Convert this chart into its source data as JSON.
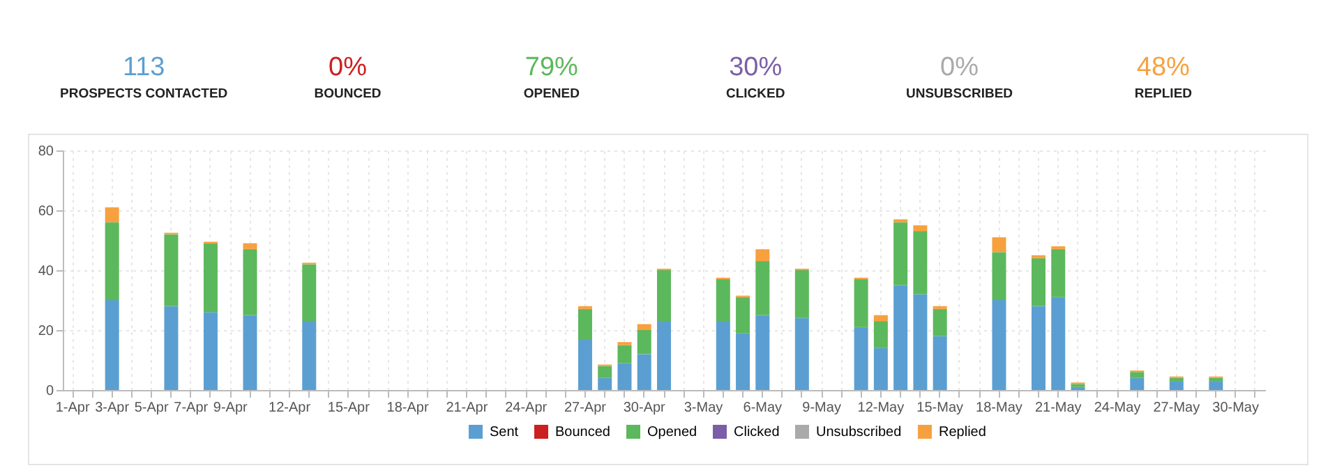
{
  "chart_data": [
    {
      "type": "other",
      "categories": [
        "PROSPECTS CONTACTED",
        "BOUNCED",
        "OPENED",
        "CLICKED",
        "UNSUBSCRIBED",
        "REPLIED"
      ],
      "value_labels": [
        "113",
        "0%",
        "79%",
        "30%",
        "0%",
        "48%"
      ],
      "colors": [
        "#5b9fd2",
        "#cc1f1f",
        "#5cb85c",
        "#7b5ea7",
        "#aaaaaa",
        "#f7a040"
      ]
    },
    {
      "type": "bar",
      "stacked": true,
      "categories": [
        "1-Apr",
        null,
        "3-Apr",
        null,
        "5-Apr",
        null,
        "7-Apr",
        null,
        "9-Apr",
        null,
        null,
        "12-Apr",
        null,
        null,
        "15-Apr",
        null,
        null,
        "18-Apr",
        null,
        null,
        "21-Apr",
        null,
        null,
        "24-Apr",
        null,
        null,
        "27-Apr",
        null,
        null,
        "30-Apr",
        null,
        null,
        "3-May",
        null,
        null,
        "6-May",
        null,
        null,
        "9-May",
        null,
        null,
        "12-May",
        null,
        null,
        "15-May",
        null,
        null,
        "18-May",
        null,
        null,
        "21-May",
        null,
        null,
        "24-May",
        null,
        null,
        "27-May",
        null,
        null,
        "30-May",
        null
      ],
      "series": [
        {
          "name": "Sent",
          "color": "#5b9fd2",
          "values": [
            0,
            0,
            30,
            0,
            0,
            28,
            0,
            26,
            0,
            25,
            0,
            0,
            23,
            0,
            0,
            0,
            0,
            0,
            0,
            0,
            0,
            0,
            0,
            0,
            0,
            0,
            17,
            4,
            9,
            12,
            23,
            0,
            0,
            23,
            19,
            25,
            0,
            24,
            0,
            0,
            21,
            14,
            35,
            32,
            18,
            0,
            0,
            30,
            0,
            28,
            31,
            1,
            0,
            0,
            4,
            0,
            3,
            0,
            3,
            0,
            0
          ]
        },
        {
          "name": "Bounced",
          "color": "#cc1f1f",
          "values": [
            0,
            0,
            0,
            0,
            0,
            0,
            0,
            0,
            0,
            0,
            0,
            0,
            0,
            0,
            0,
            0,
            0,
            0,
            0,
            0,
            0,
            0,
            0,
            0,
            0,
            0,
            0,
            0,
            0,
            0,
            0,
            0,
            0,
            0,
            0,
            0,
            0,
            0,
            0,
            0,
            0,
            0,
            0,
            0,
            0,
            0,
            0,
            0,
            0,
            0,
            0,
            0,
            0,
            0,
            0,
            0,
            0,
            0,
            0,
            0,
            0
          ]
        },
        {
          "name": "Opened",
          "color": "#5cb85c",
          "values": [
            0,
            0,
            26,
            0,
            0,
            24,
            0,
            23,
            0,
            22,
            0,
            0,
            19,
            0,
            0,
            0,
            0,
            0,
            0,
            0,
            0,
            0,
            0,
            0,
            0,
            0,
            10,
            4,
            6,
            8,
            17,
            0,
            0,
            14,
            12,
            18,
            0,
            16,
            0,
            0,
            16,
            9,
            21,
            21,
            9,
            0,
            0,
            16,
            0,
            16,
            16,
            1,
            0,
            0,
            2,
            0,
            1,
            0,
            1,
            0,
            0
          ]
        },
        {
          "name": "Clicked",
          "color": "#7b5ea7",
          "values": [
            0,
            0,
            0,
            0,
            0,
            0,
            0,
            0,
            0,
            0,
            0,
            0,
            0,
            0,
            0,
            0,
            0,
            0,
            0,
            0,
            0,
            0,
            0,
            0,
            0,
            0,
            0,
            0,
            0,
            0,
            0,
            0,
            0,
            0,
            0,
            0,
            0,
            0,
            0,
            0,
            0,
            0,
            0,
            0,
            0,
            0,
            0,
            0,
            0,
            0,
            0,
            0,
            0,
            0,
            0,
            0,
            0,
            0,
            0,
            0,
            0
          ]
        },
        {
          "name": "Unsubscribed",
          "color": "#aaaaaa",
          "values": [
            0,
            0,
            0,
            0,
            0,
            0,
            0,
            0,
            0,
            0,
            0,
            0,
            0,
            0,
            0,
            0,
            0,
            0,
            0,
            0,
            0,
            0,
            0,
            0,
            0,
            0,
            0,
            0,
            0,
            0,
            0,
            0,
            0,
            0,
            0,
            0,
            0,
            0,
            0,
            0,
            0,
            0,
            0,
            0,
            0,
            0,
            0,
            0,
            0,
            0,
            0,
            0,
            0,
            0,
            0,
            0,
            0,
            0,
            0,
            0,
            0
          ]
        },
        {
          "name": "Replied",
          "color": "#f7a040",
          "values": [
            0,
            0,
            5,
            0,
            0,
            0.5,
            0,
            0.5,
            0,
            2,
            0,
            0,
            0.5,
            0,
            0,
            0,
            0,
            0,
            0,
            0,
            0,
            0,
            0,
            0,
            0,
            0,
            1,
            0.5,
            1,
            2,
            0.5,
            0,
            0,
            0.5,
            0.5,
            4,
            0,
            0.5,
            0,
            0,
            0.5,
            2,
            1,
            2,
            1,
            0,
            0,
            5,
            0,
            1,
            1,
            0.5,
            0,
            0,
            0.5,
            0,
            0.5,
            0,
            0.5,
            0,
            0
          ]
        }
      ],
      "ylim": [
        0,
        80
      ],
      "yticks": [
        0,
        20,
        40,
        60,
        80
      ],
      "grid": true,
      "legend": "bottom"
    }
  ]
}
